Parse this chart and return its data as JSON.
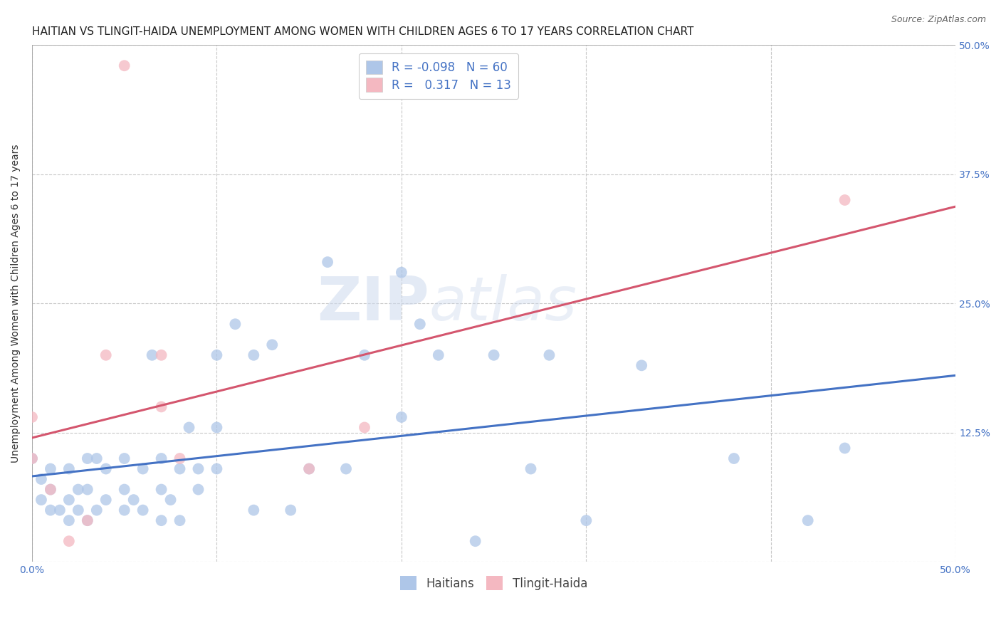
{
  "title": "HAITIAN VS TLINGIT-HAIDA UNEMPLOYMENT AMONG WOMEN WITH CHILDREN AGES 6 TO 17 YEARS CORRELATION CHART",
  "source": "Source: ZipAtlas.com",
  "ylabel": "Unemployment Among Women with Children Ages 6 to 17 years",
  "xlim": [
    0.0,
    0.5
  ],
  "ylim": [
    0.0,
    0.5
  ],
  "background_color": "#ffffff",
  "grid_color": "#c8c8c8",
  "watermark_zip": "ZIP",
  "watermark_atlas": "atlas",
  "legend_entries": [
    {
      "label": "Haitians",
      "color": "#aec6e8",
      "R": "-0.098",
      "N": "60"
    },
    {
      "label": "Tlingit-Haida",
      "color": "#f4b8c1",
      "R": "0.317",
      "N": "13"
    }
  ],
  "haitian_x": [
    0.0,
    0.005,
    0.005,
    0.01,
    0.01,
    0.01,
    0.015,
    0.02,
    0.02,
    0.02,
    0.025,
    0.025,
    0.03,
    0.03,
    0.03,
    0.035,
    0.035,
    0.04,
    0.04,
    0.05,
    0.05,
    0.05,
    0.055,
    0.06,
    0.06,
    0.065,
    0.07,
    0.07,
    0.07,
    0.075,
    0.08,
    0.08,
    0.085,
    0.09,
    0.09,
    0.1,
    0.1,
    0.1,
    0.11,
    0.12,
    0.12,
    0.13,
    0.14,
    0.15,
    0.16,
    0.17,
    0.18,
    0.2,
    0.2,
    0.21,
    0.22,
    0.24,
    0.25,
    0.27,
    0.28,
    0.3,
    0.33,
    0.38,
    0.42,
    0.44
  ],
  "haitian_y": [
    0.1,
    0.06,
    0.08,
    0.05,
    0.07,
    0.09,
    0.05,
    0.04,
    0.06,
    0.09,
    0.05,
    0.07,
    0.04,
    0.07,
    0.1,
    0.05,
    0.1,
    0.06,
    0.09,
    0.05,
    0.07,
    0.1,
    0.06,
    0.05,
    0.09,
    0.2,
    0.04,
    0.07,
    0.1,
    0.06,
    0.04,
    0.09,
    0.13,
    0.07,
    0.09,
    0.09,
    0.13,
    0.2,
    0.23,
    0.05,
    0.2,
    0.21,
    0.05,
    0.09,
    0.29,
    0.09,
    0.2,
    0.14,
    0.28,
    0.23,
    0.2,
    0.02,
    0.2,
    0.09,
    0.2,
    0.04,
    0.19,
    0.1,
    0.04,
    0.11
  ],
  "tlingit_x": [
    0.0,
    0.0,
    0.01,
    0.02,
    0.03,
    0.04,
    0.05,
    0.07,
    0.07,
    0.08,
    0.15,
    0.18,
    0.44
  ],
  "tlingit_y": [
    0.1,
    0.14,
    0.07,
    0.02,
    0.04,
    0.2,
    0.48,
    0.15,
    0.2,
    0.1,
    0.09,
    0.13,
    0.35
  ],
  "haitian_color": "#aec6e8",
  "haitian_line_color": "#4472c4",
  "tlingit_color": "#f4b8c1",
  "tlingit_line_color": "#d4566e",
  "marker_size": 130,
  "line_width": 2.2,
  "title_fontsize": 11,
  "label_fontsize": 10,
  "tick_fontsize": 10,
  "legend_fontsize": 12
}
